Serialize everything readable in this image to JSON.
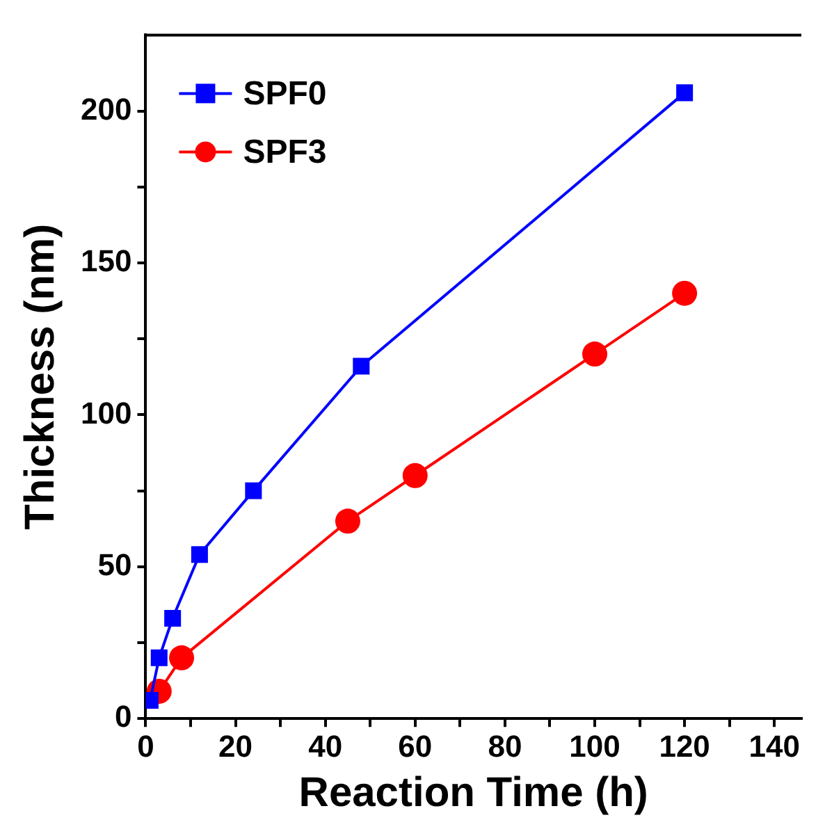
{
  "chart_data": {
    "type": "line",
    "xlabel": "Reaction Time (h)",
    "ylabel": "Thickness (nm)",
    "xlim": [
      0,
      146
    ],
    "xticks": [
      0,
      {
        "value": 10,
        "label": null
      },
      20,
      {
        "value": 30,
        "label": null
      },
      40,
      {
        "value": 50,
        "label": null
      },
      60,
      {
        "value": 70,
        "label": null
      },
      80,
      {
        "value": 90,
        "label": null
      },
      100,
      {
        "value": 110,
        "label": null
      },
      120,
      {
        "value": 130,
        "label": null
      },
      140
    ],
    "ylim": [
      0,
      225
    ],
    "yticks": [
      0,
      {
        "value": 25,
        "label": null
      },
      50,
      {
        "value": 75,
        "label": null
      },
      100,
      {
        "value": 125,
        "label": null
      },
      150,
      {
        "value": 175,
        "label": null
      },
      200
    ],
    "grid": false,
    "legend": "top left",
    "line_style": "solid",
    "series": [
      {
        "name": "SPF0",
        "color": "#0000ff",
        "marker": "square",
        "x": [
          1,
          3,
          6,
          12,
          24,
          48,
          120
        ],
        "values": [
          6,
          20,
          33,
          54,
          75,
          116,
          206
        ]
      },
      {
        "name": "SPF3",
        "color": "#ff0000",
        "marker": "circle",
        "x": [
          3,
          8,
          45,
          60,
          100,
          120
        ],
        "values": [
          9,
          20,
          65,
          80,
          120,
          140
        ]
      }
    ]
  }
}
